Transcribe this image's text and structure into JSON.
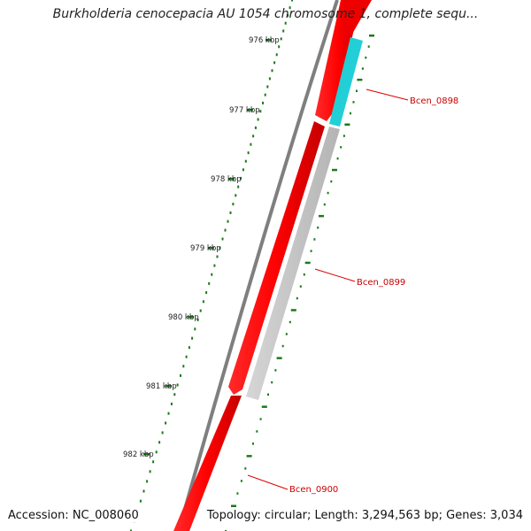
{
  "title": "Burkholderia cenocepacia AU 1054 chromosome 1, complete sequ...",
  "footer": {
    "accession": "Accession: NC_008060",
    "summary": "Topology: circular; Length: 3,294,563 bp; Genes: 3,034"
  },
  "ruler": {
    "tick_labels": [
      "976 kbp",
      "977 kbp",
      "978 kbp",
      "979 kbp",
      "980 kbp",
      "981 kbp",
      "982 kbp"
    ],
    "tick_color": "#1a7a1a"
  },
  "genes": [
    {
      "name": "Bcen_0898",
      "color": "#22cfd6",
      "strand": "reverse"
    },
    {
      "name": "Bcen_0899",
      "color": "#c8c8c8",
      "strand": "reverse"
    },
    {
      "name": "Bcen_0900",
      "color": "#e00000",
      "strand": "forward"
    }
  ],
  "colors": {
    "backbone": "#7a7a7a",
    "forward_gene": "#ee0000",
    "label_line": "#dd0000"
  }
}
